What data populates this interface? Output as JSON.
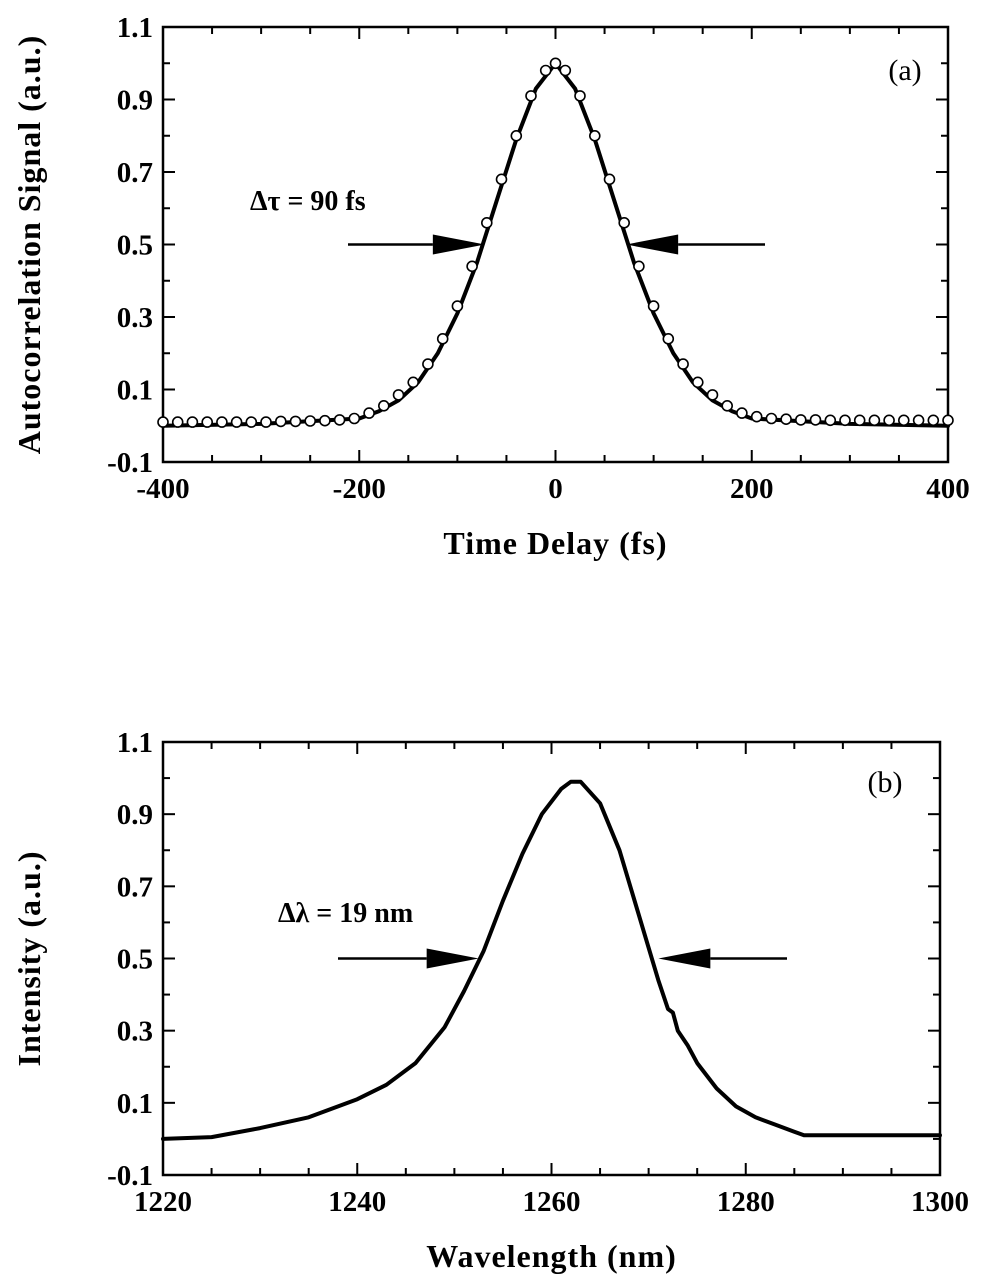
{
  "chart_data": [
    {
      "panel_label": "(a)",
      "type": "line",
      "xlabel": "Time Delay (fs)",
      "ylabel": "Autocorrelation Signal (a.u.)",
      "xlim": [
        -400,
        400
      ],
      "ylim": [
        -0.1,
        1.1
      ],
      "xticks": [
        "-400",
        "-200",
        "0",
        "200",
        "400"
      ],
      "yticks": [
        "-0.1",
        "0.1",
        "0.3",
        "0.5",
        "0.7",
        "0.9",
        "1.1"
      ],
      "annotation": {
        "text": "Δτ = 90 fs",
        "y": 0.5,
        "left_x": -72,
        "right_x": 72
      },
      "series": [
        {
          "style": "line",
          "x": [
            -400,
            -300,
            -200,
            -180,
            -160,
            -140,
            -120,
            -100,
            -80,
            -60,
            -40,
            -20,
            0,
            20,
            40,
            60,
            80,
            100,
            120,
            140,
            160,
            180,
            200,
            300,
            400
          ],
          "y": [
            0.0,
            0.005,
            0.02,
            0.04,
            0.07,
            0.12,
            0.2,
            0.31,
            0.45,
            0.62,
            0.79,
            0.93,
            1.0,
            0.93,
            0.79,
            0.62,
            0.45,
            0.31,
            0.2,
            0.12,
            0.07,
            0.04,
            0.02,
            0.005,
            0.0
          ]
        },
        {
          "style": "markers",
          "x": [
            -400,
            -385,
            -370,
            -355,
            -340,
            -325,
            -310,
            -295,
            -280,
            -265,
            -250,
            -235,
            -220,
            -205,
            -190,
            -175,
            -160,
            -145,
            -130,
            -115,
            -100,
            -85,
            -70,
            -55,
            -40,
            -25,
            -10,
            0,
            10,
            25,
            40,
            55,
            70,
            85,
            100,
            115,
            130,
            145,
            160,
            175,
            190,
            205,
            220,
            235,
            250,
            265,
            280,
            295,
            310,
            325,
            340,
            355,
            370,
            385,
            400
          ],
          "y": [
            0.01,
            0.01,
            0.01,
            0.01,
            0.01,
            0.01,
            0.01,
            0.01,
            0.012,
            0.012,
            0.013,
            0.014,
            0.016,
            0.02,
            0.035,
            0.055,
            0.085,
            0.12,
            0.17,
            0.24,
            0.33,
            0.44,
            0.56,
            0.68,
            0.8,
            0.91,
            0.98,
            1.0,
            0.98,
            0.91,
            0.8,
            0.68,
            0.56,
            0.44,
            0.33,
            0.24,
            0.17,
            0.12,
            0.085,
            0.055,
            0.035,
            0.025,
            0.02,
            0.018,
            0.016,
            0.016,
            0.015,
            0.015,
            0.015,
            0.015,
            0.015,
            0.015,
            0.015,
            0.015,
            0.015
          ]
        }
      ]
    },
    {
      "panel_label": "(b)",
      "type": "line",
      "xlabel": "Wavelength (nm)",
      "ylabel": "Intensity (a.u.)",
      "xlim": [
        1220,
        1300
      ],
      "ylim": [
        -0.1,
        1.1
      ],
      "xticks": [
        "1220",
        "1240",
        "1260",
        "1280",
        "1300"
      ],
      "yticks": [
        "-0.1",
        "0.1",
        "0.3",
        "0.5",
        "0.7",
        "0.9",
        "1.1"
      ],
      "annotation": {
        "text": "Δλ = 19 nm",
        "y": 0.5,
        "left_x": 1252.5,
        "right_x": 1271
      },
      "series": [
        {
          "style": "line",
          "x": [
            1220,
            1225,
            1230,
            1235,
            1240,
            1243,
            1246,
            1249,
            1251,
            1253,
            1255,
            1257,
            1259,
            1261,
            1262,
            1263,
            1265,
            1267,
            1269,
            1270,
            1271,
            1272,
            1272.5,
            1273,
            1274,
            1275,
            1277,
            1279,
            1281,
            1283,
            1285,
            1286,
            1290,
            1300
          ],
          "y": [
            0.0,
            0.005,
            0.03,
            0.06,
            0.11,
            0.15,
            0.21,
            0.31,
            0.41,
            0.52,
            0.66,
            0.79,
            0.9,
            0.97,
            0.99,
            0.99,
            0.93,
            0.8,
            0.62,
            0.53,
            0.44,
            0.36,
            0.35,
            0.3,
            0.26,
            0.21,
            0.14,
            0.09,
            0.06,
            0.04,
            0.02,
            0.01,
            0.01,
            0.01
          ]
        }
      ]
    }
  ]
}
